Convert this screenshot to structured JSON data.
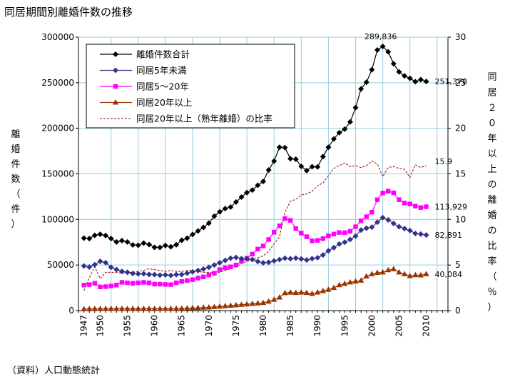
{
  "page": {
    "title": "同居期間別離婚件数の推移",
    "source": "（資料）人口動態統計"
  },
  "chart_data": {
    "type": "line",
    "x": [
      1947,
      1948,
      1949,
      1950,
      1951,
      1952,
      1953,
      1954,
      1955,
      1956,
      1957,
      1958,
      1959,
      1960,
      1961,
      1962,
      1963,
      1964,
      1965,
      1966,
      1967,
      1968,
      1969,
      1970,
      1971,
      1972,
      1973,
      1974,
      1975,
      1976,
      1977,
      1978,
      1979,
      1980,
      1981,
      1982,
      1983,
      1984,
      1985,
      1986,
      1987,
      1988,
      1989,
      1990,
      1991,
      1992,
      1993,
      1994,
      1995,
      1996,
      1997,
      1998,
      1999,
      2000,
      2001,
      2002,
      2003,
      2004,
      2005,
      2006,
      2007,
      2008,
      2009,
      2010
    ],
    "xticks": [
      1947,
      1950,
      1955,
      1960,
      1965,
      1970,
      1975,
      1980,
      1985,
      1990,
      1995,
      2000,
      2005,
      2010
    ],
    "xlim": [
      1946,
      2014
    ],
    "ylim_left": [
      0,
      300000
    ],
    "yticks_left": [
      "0",
      "50000",
      "100000",
      "150000",
      "200000",
      "250000",
      "300000"
    ],
    "ylabel_left": "離婚件数（件）",
    "ylim_right": [
      0,
      30
    ],
    "yticks_right": [
      "0",
      "5",
      "10",
      "15",
      "20",
      "25",
      "30"
    ],
    "ylabel_right": "同居２０年以上の離婚の比率（％）",
    "grid": true,
    "legend_position": "top-left",
    "series": [
      {
        "name": "離婚件数合計",
        "axis": "left",
        "color": "#000000",
        "marker": "diamond",
        "values": [
          79551,
          79032,
          82575,
          83689,
          82331,
          79021,
          75255,
          76759,
          75267,
          72040,
          71651,
          74004,
          72455,
          69410,
          69323,
          71394,
          69996,
          72306,
          77195,
          79432,
          83478,
          87327,
          91280,
          95937,
          103595,
          108382,
          111877,
          113622,
          119135,
          124512,
          129485,
          132146,
          137468,
          141689,
          154221,
          163980,
          179150,
          178746,
          166640,
          166054,
          158227,
          153600,
          157811,
          157608,
          168969,
          179191,
          188297,
          195106,
          199016,
          206955,
          222635,
          243183,
          250529,
          264246,
          285911,
          289836,
          283854,
          270804,
          261917,
          257475,
          254832,
          251136,
          253353,
          251378
        ]
      },
      {
        "name": "同居5年未満",
        "axis": "left",
        "color": "#33338c",
        "marker": "diamond",
        "values": [
          49000,
          47800,
          50300,
          54000,
          52600,
          47500,
          45000,
          43000,
          42000,
          40700,
          40300,
          40400,
          39700,
          39500,
          38900,
          39200,
          38600,
          39500,
          39600,
          41000,
          42500,
          44000,
          45500,
          47500,
          50000,
          52500,
          55000,
          57500,
          58300,
          57000,
          56800,
          56000,
          53900,
          52400,
          53000,
          54500,
          56000,
          57500,
          56900,
          57600,
          56700,
          55500,
          57000,
          58000,
          61000,
          65600,
          69000,
          73000,
          75000,
          78000,
          81800,
          88300,
          90400,
          91500,
          96900,
          102000,
          99500,
          95600,
          92000,
          90000,
          87800,
          84600,
          83900,
          82891
        ]
      },
      {
        "name": "同居5～20年",
        "axis": "left",
        "color": "#ff00ff",
        "marker": "square",
        "values": [
          28000,
          28500,
          30000,
          26000,
          26300,
          27000,
          28000,
          31000,
          30500,
          30000,
          30500,
          31000,
          30500,
          29000,
          29000,
          28700,
          28500,
          30500,
          32000,
          33000,
          34000,
          35700,
          37000,
          39000,
          41000,
          45000,
          47000,
          48000,
          50000,
          54000,
          57500,
          62000,
          67500,
          71000,
          78000,
          86000,
          93000,
          101000,
          99000,
          90000,
          85000,
          81000,
          76500,
          77000,
          79000,
          82000,
          84000,
          85700,
          85500,
          87000,
          92000,
          98500,
          103000,
          108000,
          121600,
          129000,
          131000,
          129200,
          121700,
          118000,
          117000,
          114600,
          113000,
          113929
        ]
      },
      {
        "name": "同居20年以上",
        "axis": "left",
        "color": "#993300",
        "marker": "triangle",
        "values": [
          1700,
          1800,
          1900,
          1900,
          2000,
          2000,
          2000,
          2000,
          2000,
          2100,
          2100,
          2100,
          2100,
          2000,
          2000,
          2000,
          2100,
          2200,
          2300,
          2500,
          2800,
          3000,
          3300,
          3500,
          4000,
          4500,
          5000,
          5500,
          6000,
          6500,
          7000,
          7500,
          8000,
          8500,
          10000,
          12000,
          14500,
          19300,
          19900,
          19500,
          20000,
          19500,
          18500,
          20000,
          21500,
          23000,
          25000,
          28000,
          29500,
          31000,
          32000,
          33000,
          37600,
          40000,
          41500,
          42000,
          44500,
          45500,
          42000,
          40000,
          38000,
          39000,
          38800,
          40084
        ]
      },
      {
        "name": "同居20年以上（熟年離婚）の比率",
        "axis": "right",
        "color": "#990000",
        "dashed": true,
        "values": [
          2.2,
          3.6,
          4.8,
          3.5,
          4.2,
          4.2,
          4.2,
          4.1,
          4.2,
          4.2,
          4.3,
          4.4,
          4.6,
          4.5,
          4.4,
          4.3,
          4.4,
          4.3,
          4.3,
          4.4,
          4.4,
          4.3,
          4.2,
          4.2,
          4.2,
          4.2,
          4.4,
          4.6,
          4.8,
          5.2,
          5.4,
          5.6,
          5.8,
          6.0,
          6.5,
          7.3,
          8.1,
          10.8,
          12.0,
          12.2,
          12.7,
          12.8,
          13.1,
          13.7,
          14.0,
          14.8,
          15.6,
          15.9,
          16.2,
          15.8,
          15.9,
          15.7,
          15.9,
          16.4,
          16.1,
          14.7,
          15.7,
          15.8,
          15.6,
          15.5,
          14.6,
          16.0,
          15.7,
          15.9
        ]
      }
    ],
    "annotations": [
      {
        "text": "289,836",
        "series": 0,
        "x": 2002,
        "pos": "above"
      },
      {
        "text": "251,378",
        "series": 0,
        "x": 2010,
        "pos": "right"
      },
      {
        "text": "15.9",
        "series": 4,
        "x": 2010,
        "pos": "right"
      },
      {
        "text": "113,929",
        "series": 2,
        "x": 2010,
        "pos": "right"
      },
      {
        "text": "82,891",
        "series": 1,
        "x": 2010,
        "pos": "right"
      },
      {
        "text": "40,084",
        "series": 3,
        "x": 2010,
        "pos": "right"
      }
    ]
  }
}
